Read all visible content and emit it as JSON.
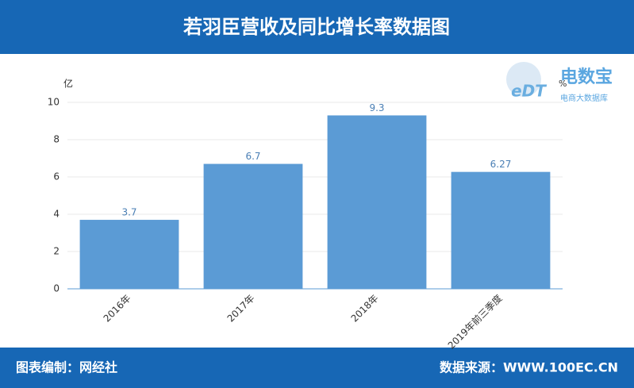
{
  "chart_data": {
    "type": "bar",
    "title": "若羽臣营收及同比增长率数据图",
    "y_unit": "亿",
    "y2_unit": "%",
    "categories": [
      "2016年",
      "2017年",
      "2018年",
      "2019年前三季度"
    ],
    "values": [
      3.7,
      6.7,
      9.3,
      6.27
    ],
    "color": "#5b9bd5",
    "ylim": [
      0,
      10
    ],
    "yticks": [
      0,
      2,
      4,
      6,
      8,
      10
    ],
    "grid": true
  },
  "logo": {
    "name": "电数宝",
    "sub": "电商大数据库",
    "mark": "eDT"
  },
  "footer": {
    "left": "图表编制：网经社",
    "right": "数据来源：WWW.100EC.CN"
  }
}
